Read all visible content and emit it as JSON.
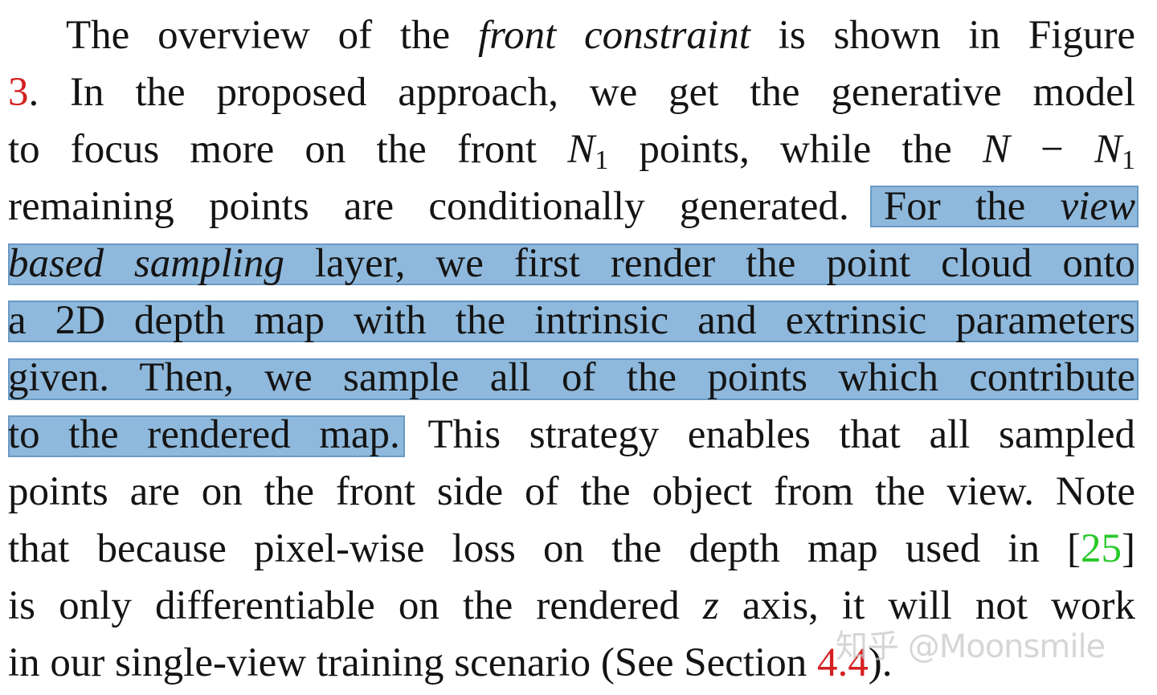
{
  "paragraph": {
    "l1_a": "The overview of the ",
    "l1_it": "front constraint",
    "l1_b": " is shown in Figure",
    "l2_ref": "3",
    "l2_b": ". In the proposed approach, we get the generative model",
    "l3_a": "to focus more on the front ",
    "l3_n": "N",
    "l3_sub": "1",
    "l3_b": " points, while the ",
    "l3_n2": "N",
    "l3_minus": " − ",
    "l3_n3": "N",
    "l3_sub2": "1",
    "l4_a": "remaining points are conditionally generated",
    "l4_b": ". For the ",
    "l4_it": "view",
    "l5_it": "based sampling",
    "l5_b": " layer, we first render the point cloud onto",
    "l6": "a 2D depth map with the intrinsic and extrinsic parameters",
    "l7": "given. Then, we sample all of the points which contribute",
    "l8_a": "to the rendered map.",
    "l8_b": " This strategy enables that all sampled",
    "l9": "points are on the front side of the object from the view. Note",
    "l10_a": "that because pixel-wise loss on the depth map used in [",
    "l10_ref": "25",
    "l10_b": "]",
    "l11_a": "is only differentiable on the rendered ",
    "l11_z": "z",
    "l11_b": " axis, it will not work",
    "l12_a": "in our single-view training scenario (See Section ",
    "l12_ref": "4.4",
    "l12_b": ")."
  },
  "watermark": "知乎 @Moonsmile",
  "colors": {
    "highlight": "#8fb9dc",
    "reference_red": "#d42020",
    "citation_green": "#28c828"
  }
}
